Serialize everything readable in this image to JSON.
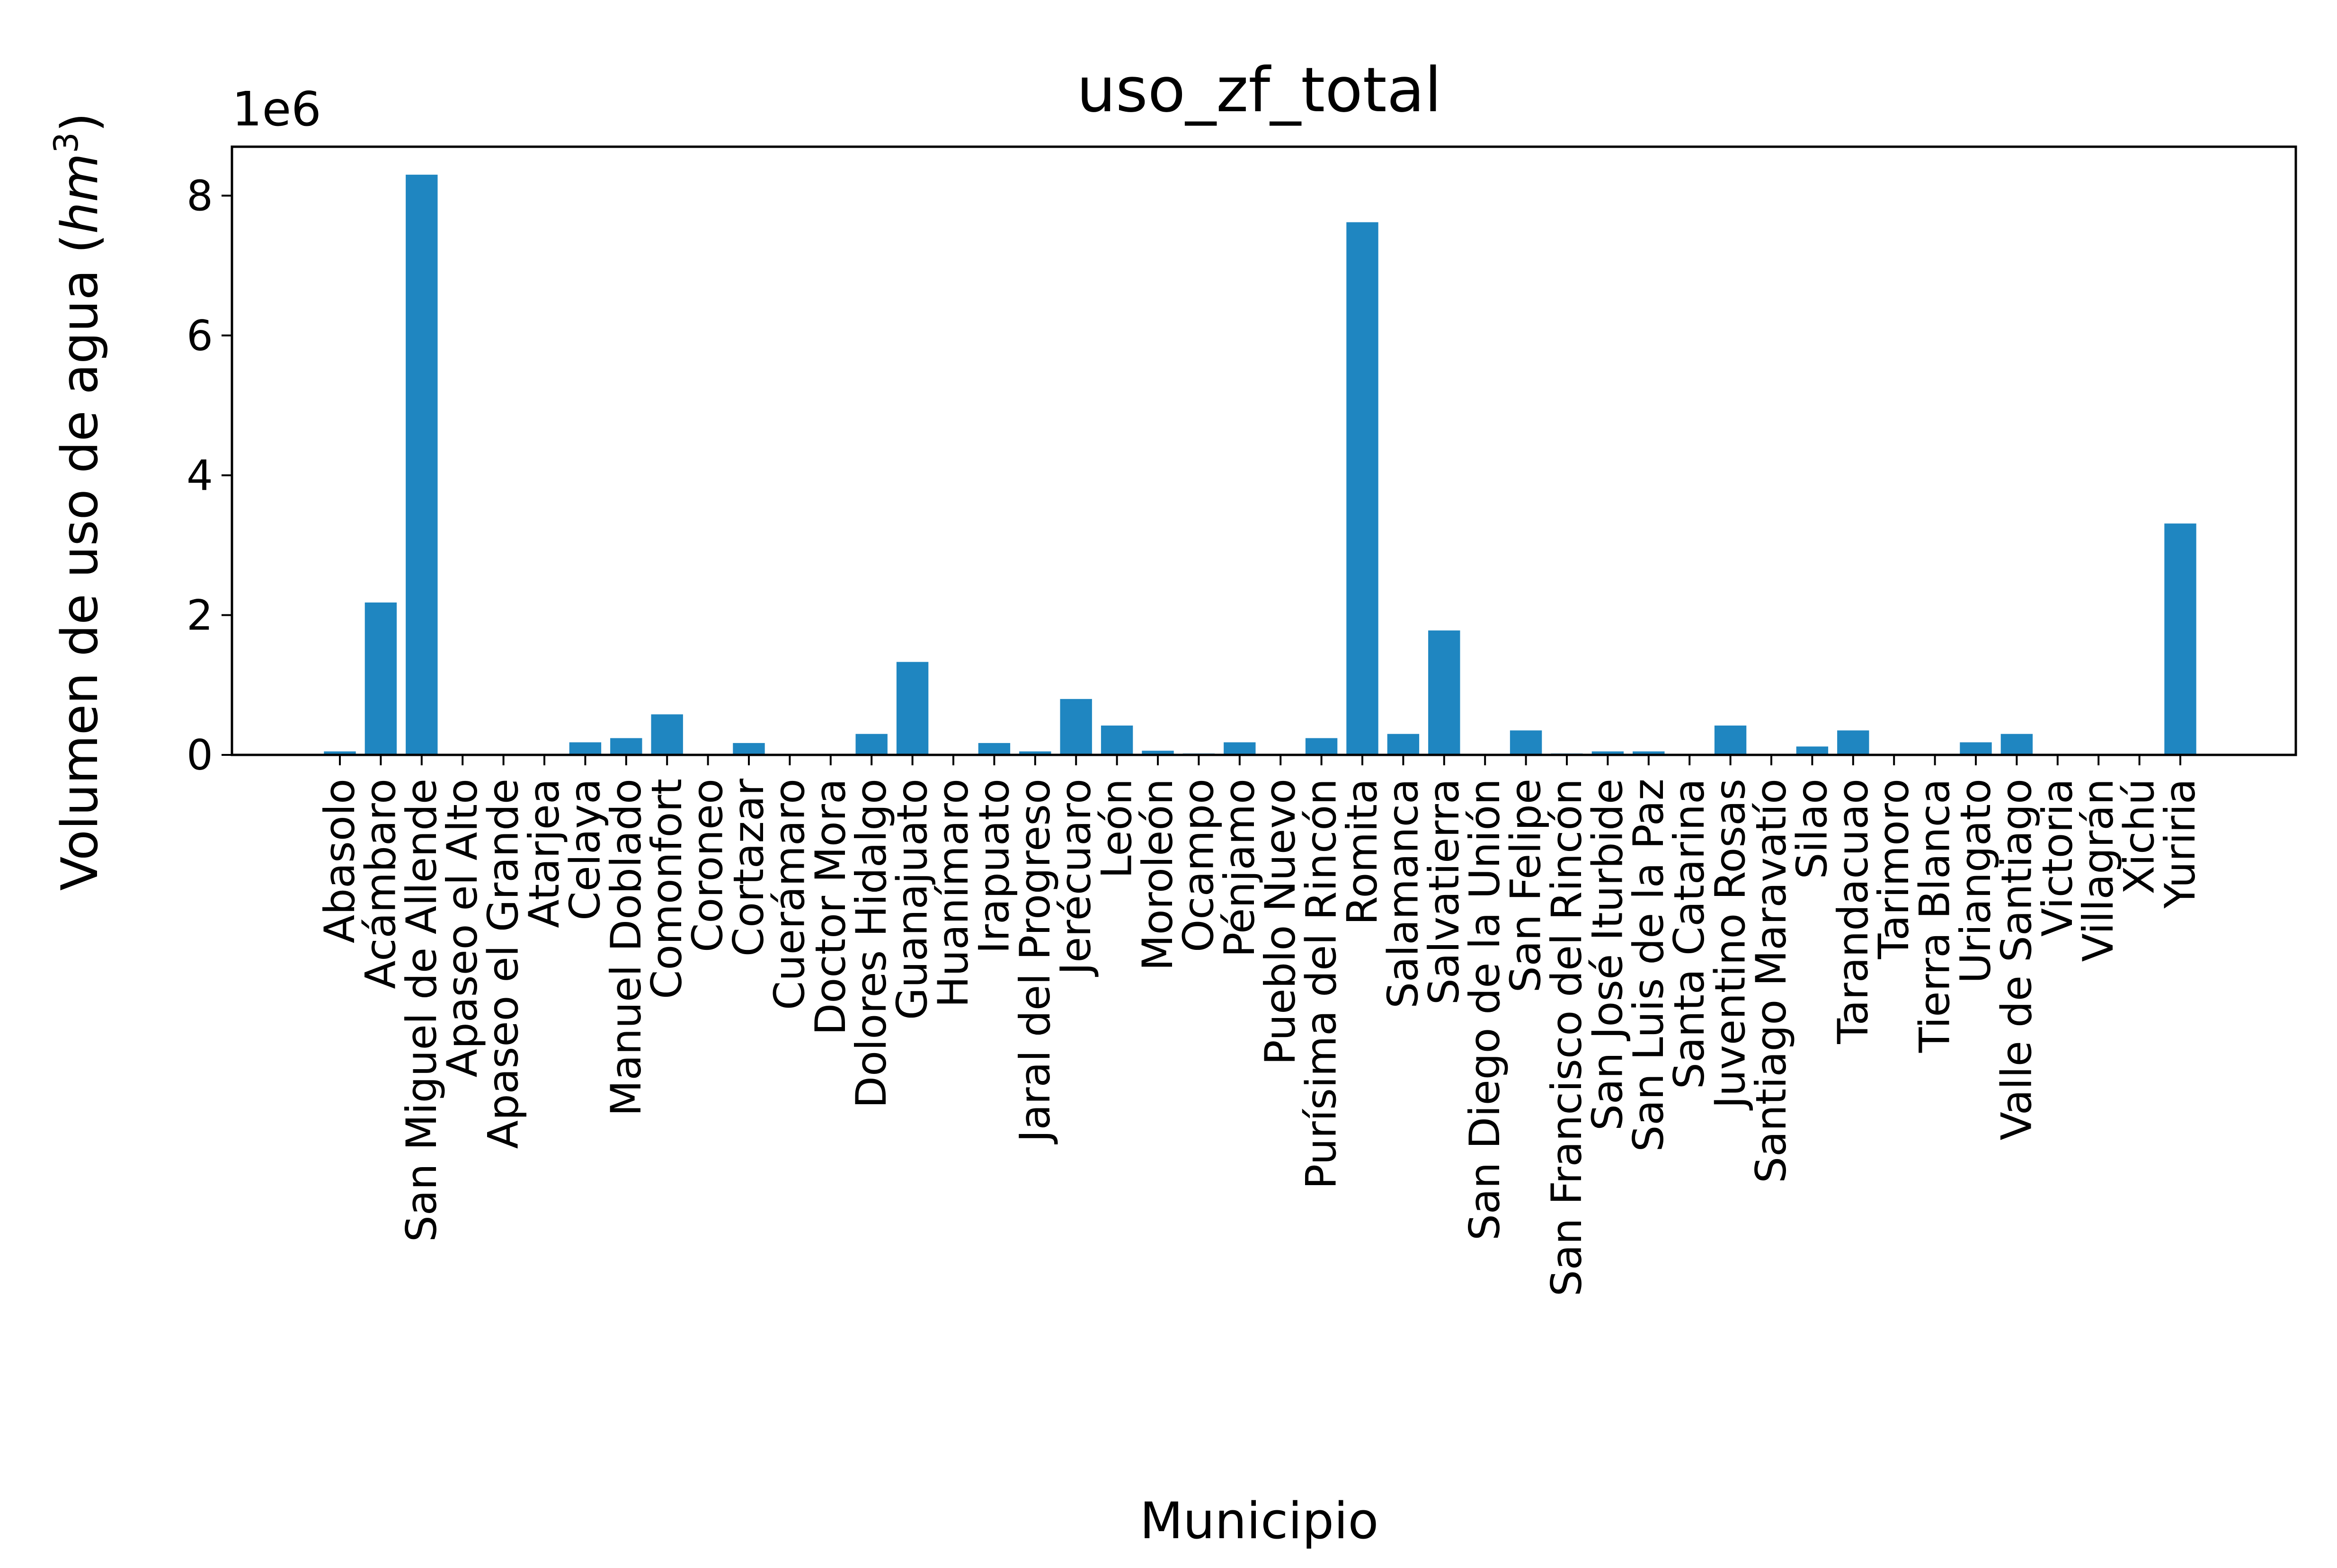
{
  "chart_data": {
    "type": "bar",
    "title": "uso_zf_total",
    "xlabel": "Municipio",
    "ylabel_prefix": "Volumen de uso de agua (",
    "ylabel_unit_base": "hm",
    "ylabel_unit_exp": "3",
    "ylabel_suffix": ")",
    "y_offset_label": "1e6",
    "bar_color": "#1f86c1",
    "ylim": [
      0,
      8.7
    ],
    "yticks": [
      0,
      2,
      4,
      6,
      8
    ],
    "ytick_labels": [
      "0",
      "2",
      "4",
      "6",
      "8"
    ],
    "legend": "none",
    "grid": false,
    "categories": [
      "Abasolo",
      "Acámbaro",
      "San Miguel de Allende",
      "Apaseo el Alto",
      "Apaseo el Grande",
      "Atarjea",
      "Celaya",
      "Manuel Doblado",
      "Comonfort",
      "Coroneo",
      "Cortazar",
      "Cuerámaro",
      "Doctor Mora",
      "Dolores Hidalgo",
      "Guanajuato",
      "Huanímaro",
      "Irapuato",
      "Jaral del Progreso",
      "Jerécuaro",
      "León",
      "Moroleón",
      "Ocampo",
      "Pénjamo",
      "Pueblo Nuevo",
      "Purísima del Rincón",
      "Romita",
      "Salamanca",
      "Salvatierra",
      "San Diego de la Unión",
      "San Felipe",
      "San Francisco del Rincón",
      "San José Iturbide",
      "San Luis de la Paz",
      "Santa Catarina",
      "Juventino Rosas",
      "Santiago Maravatío",
      "Silao",
      "Tarandacuao",
      "Tarimoro",
      "Tierra Blanca",
      "Uriangato",
      "Valle de Santiago",
      "Victoria",
      "Villagrán",
      "Xichú",
      "Yuriria"
    ],
    "values": [
      0.05,
      2.18,
      8.3,
      0.0,
      0.0,
      0.0,
      0.18,
      0.24,
      0.58,
      0.0,
      0.17,
      0.01,
      0.01,
      0.3,
      1.33,
      0.01,
      0.17,
      0.05,
      0.8,
      0.42,
      0.06,
      0.02,
      0.18,
      0.01,
      0.24,
      7.62,
      0.3,
      1.78,
      0.01,
      0.35,
      0.02,
      0.05,
      0.05,
      0.01,
      0.42,
      0.01,
      0.12,
      0.35,
      0.01,
      0.01,
      0.18,
      0.3,
      0.01,
      0.01,
      0.01,
      3.31
    ]
  }
}
